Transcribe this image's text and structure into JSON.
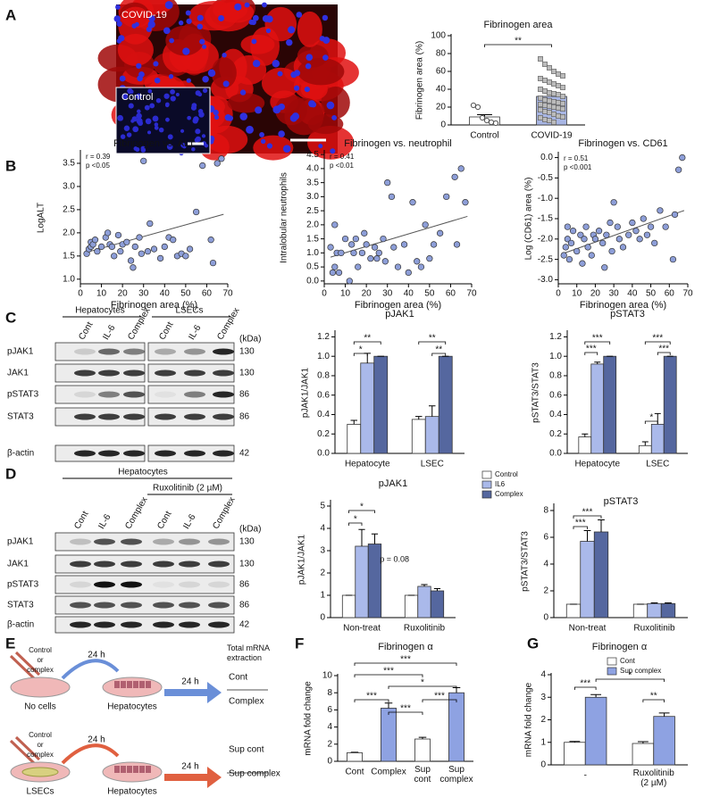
{
  "panel_labels": [
    "A",
    "B",
    "C",
    "D",
    "E",
    "F",
    "G"
  ],
  "image": {
    "labels": [
      "COVID-19",
      "Control"
    ]
  },
  "blots": [
    {
      "cell_groups": [
        "Hepatocytes",
        "LSECs"
      ],
      "lanes": [
        "Cont",
        "IL-6",
        "Complex",
        "Cont",
        "IL-6",
        "Complex"
      ],
      "rows": [
        "pJAK1",
        "JAK1",
        "pSTAT3",
        "STAT3",
        "β-actin"
      ],
      "kda_header": "(kDa)",
      "kda": [
        130,
        130,
        86,
        86,
        42
      ]
    },
    {
      "cell_groups": [
        "Hepatocytes"
      ],
      "treatment": "Ruxolitinib (2 µM)",
      "lanes": [
        "Cont",
        "IL-6",
        "Complex",
        "Cont",
        "IL-6",
        "Complex"
      ],
      "rows": [
        "pJAK1",
        "JAK1",
        "pSTAT3",
        "STAT3",
        "β-actin"
      ],
      "kda_header": "(kDa)",
      "kda": [
        130,
        130,
        86,
        86,
        42
      ]
    }
  ],
  "diagram": {
    "header": "Total mRNA\nextraction",
    "rows": [
      {
        "input": "Control\nor\ncomplex",
        "time1": "24 h",
        "source": "No cells",
        "target": "Hepatocytes",
        "time2": "24 h",
        "outputs": [
          "Cont",
          "Complex"
        ]
      },
      {
        "input": "Control\nor\ncomplex",
        "time1": "24 h",
        "source": "LSECs",
        "target": "Hepatocytes",
        "time2": "24 h",
        "outputs": [
          "Sup cont",
          "Sup complex"
        ]
      }
    ]
  },
  "chart_data": [
    {
      "type": "bar",
      "title": "Fibrinogen area",
      "y_label": "Fibrinogen area (%)",
      "categories": [
        "Control",
        "COVID-19"
      ],
      "values": [
        9,
        32
      ],
      "errors": [
        2.5,
        3.5
      ],
      "colors": [
        "#ffffff",
        "#a8b6e4"
      ],
      "points": [
        [
          22,
          20,
          8,
          5,
          3,
          2
        ],
        [
          74,
          68,
          64,
          60,
          57,
          55,
          52,
          50,
          48,
          46,
          44,
          42,
          40,
          38,
          36,
          35,
          34,
          32,
          30,
          28,
          27,
          26,
          25,
          24,
          23,
          22,
          21,
          20,
          19,
          18,
          17,
          15,
          14,
          12,
          10,
          9,
          8,
          6,
          5,
          3
        ]
      ],
      "ylim": [
        0,
        100
      ],
      "yticks": [
        0,
        20,
        40,
        60,
        80,
        100
      ],
      "significance": [
        "**"
      ]
    },
    {
      "type": "scatter",
      "title": "Fibrinogen vs. ALT",
      "x_label": "Fibrinogen area (%)",
      "y_label": "LogALT",
      "annotations": [
        "r = 0.39",
        "p <0.05"
      ],
      "x": [
        3,
        4,
        5,
        5,
        6,
        7,
        8,
        10,
        12,
        13,
        14,
        15,
        16,
        18,
        19,
        20,
        22,
        24,
        25,
        26,
        28,
        29,
        30,
        32,
        33,
        35,
        38,
        40,
        42,
        44,
        46,
        48,
        50,
        52,
        55,
        58,
        62,
        63,
        65,
        67
      ],
      "y": [
        1.55,
        1.65,
        1.7,
        1.8,
        1.75,
        1.85,
        1.6,
        1.7,
        1.9,
        2.0,
        1.75,
        1.7,
        1.5,
        1.95,
        1.6,
        1.75,
        1.8,
        1.4,
        1.25,
        1.7,
        1.9,
        1.55,
        3.55,
        1.6,
        2.2,
        1.65,
        1.45,
        1.7,
        1.9,
        1.85,
        1.5,
        1.55,
        1.5,
        1.65,
        2.45,
        3.45,
        1.85,
        1.35,
        3.5,
        3.6
      ],
      "trendline": {
        "x": [
          3,
          68
        ],
        "y": [
          1.58,
          2.4
        ]
      },
      "color": "#8d9ed8",
      "xlim": [
        0,
        70
      ],
      "xticks": [
        0,
        10,
        20,
        30,
        40,
        50,
        60,
        70
      ],
      "ylim": [
        0.9,
        3.75
      ],
      "yticks": [
        {
          "value": 1,
          "label": "1.0"
        },
        1.5,
        {
          "value": 2,
          "label": "2.0"
        },
        2.5,
        {
          "value": 3,
          "label": "3.0"
        },
        3.5
      ]
    },
    {
      "type": "scatter",
      "title": "Fibrinogen vs. neutrophil",
      "x_label": "Fibrinogen area (%)",
      "y_label": "Intralobular neutrophils",
      "annotations": [
        "r = 0.41",
        "p <0.01"
      ],
      "x": [
        3,
        4,
        5,
        5,
        6,
        7,
        8,
        10,
        12,
        13,
        14,
        15,
        16,
        18,
        19,
        20,
        22,
        24,
        25,
        26,
        28,
        29,
        30,
        32,
        33,
        35,
        38,
        40,
        42,
        44,
        46,
        48,
        50,
        52,
        55,
        58,
        62,
        63,
        65,
        67
      ],
      "y": [
        1.2,
        0.3,
        0.5,
        2.0,
        1.0,
        0.3,
        1.0,
        1.5,
        0.0,
        1.3,
        1.0,
        1.5,
        0.5,
        1.0,
        1.7,
        1.3,
        0.8,
        1.2,
        0.8,
        1.0,
        1.5,
        0.7,
        3.5,
        3.0,
        1.2,
        0.5,
        1.3,
        0.3,
        2.8,
        0.7,
        0.5,
        2.0,
        0.8,
        1.3,
        1.7,
        3.0,
        3.7,
        1.3,
        4.0,
        2.8
      ],
      "trendline": {
        "x": [
          3,
          68
        ],
        "y": [
          0.85,
          2.3
        ]
      },
      "color": "#8d9ed8",
      "xlim": [
        0,
        70
      ],
      "xticks": [
        0,
        10,
        20,
        30,
        40,
        50,
        60,
        70
      ],
      "ylim": [
        -0.1,
        4.6
      ],
      "yticks": [
        {
          "value": 0,
          "label": "0.0"
        },
        0.5,
        {
          "value": 1,
          "label": "1.0"
        },
        1.5,
        {
          "value": 2,
          "label": "2.0"
        },
        2.5,
        {
          "value": 3,
          "label": "3.0"
        },
        3.5,
        {
          "value": 4,
          "label": "4.0"
        },
        4.5
      ]
    },
    {
      "type": "scatter",
      "title": "Fibrinogen vs. CD61",
      "x_label": "Fibrinogen area (%)",
      "y_label": "Log (CD61) area (%)",
      "annotations": [
        "r = 0.51",
        "p <0.001"
      ],
      "x": [
        3,
        4,
        5,
        5,
        6,
        7,
        8,
        10,
        12,
        13,
        14,
        15,
        16,
        18,
        19,
        20,
        22,
        24,
        25,
        26,
        28,
        29,
        30,
        32,
        33,
        35,
        38,
        40,
        42,
        44,
        46,
        48,
        50,
        52,
        55,
        58,
        62,
        63,
        65,
        67
      ],
      "y": [
        -2.4,
        -2.2,
        -2.0,
        -1.7,
        -2.5,
        -2.1,
        -1.8,
        -2.3,
        -1.9,
        -2.6,
        -2.0,
        -1.7,
        -2.2,
        -2.4,
        -1.9,
        -2.0,
        -1.8,
        -2.1,
        -2.7,
        -1.9,
        -1.6,
        -2.3,
        -1.1,
        -1.7,
        -2.0,
        -2.2,
        -1.9,
        -1.6,
        -1.8,
        -2.0,
        -1.5,
        -1.9,
        -1.7,
        -2.1,
        -1.3,
        -1.7,
        -2.5,
        -1.4,
        -0.3,
        0.0
      ],
      "trendline": {
        "x": [
          3,
          68
        ],
        "y": [
          -2.35,
          -1.3
        ]
      },
      "color": "#8d9ed8",
      "xlim": [
        0,
        70
      ],
      "xticks": [
        0,
        10,
        20,
        30,
        40,
        50,
        60,
        70
      ],
      "ylim": [
        -3.1,
        0.1
      ],
      "yticks": [
        {
          "value": -3,
          "label": "-3.0"
        },
        -2.5,
        {
          "value": -2,
          "label": "-2.0"
        },
        -1.5,
        {
          "value": -1,
          "label": "-1.0"
        },
        -0.5,
        {
          "value": 0,
          "label": "0.0"
        }
      ]
    },
    {
      "type": "bar",
      "title": "pJAK1",
      "y_label": "pJAK1/JAK1",
      "categories": [
        "Hepatocyte",
        "LSEC"
      ],
      "series": [
        {
          "color": "#ffffff",
          "values": [
            0.3,
            0.35
          ],
          "errors": [
            0.04,
            0.03
          ]
        },
        {
          "color": "#aab9ea",
          "values": [
            0.93,
            0.38
          ],
          "errors": [
            0.1,
            0.11
          ]
        },
        {
          "color": "#55679f",
          "values": [
            1,
            1
          ],
          "errors": [
            0,
            0
          ]
        }
      ],
      "ylim": [
        0,
        1.25
      ],
      "yticks": [
        {
          "value": 0,
          "label": "0.0"
        },
        0.2,
        0.4,
        0.6,
        0.8,
        {
          "value": 1,
          "label": "1.0"
        },
        1.2
      ],
      "significance": [
        "**",
        "*",
        "**",
        "**"
      ]
    },
    {
      "type": "bar",
      "title": "pSTAT3",
      "y_label": "pSTAT3/STAT3",
      "categories": [
        "Hepatocyte",
        "LSEC"
      ],
      "series": [
        {
          "color": "#ffffff",
          "values": [
            0.17,
            0.08
          ],
          "errors": [
            0.03,
            0.04
          ]
        },
        {
          "color": "#aab9ea",
          "values": [
            0.92,
            0.3
          ],
          "errors": [
            0.02,
            0.11
          ]
        },
        {
          "color": "#55679f",
          "values": [
            1,
            1
          ],
          "errors": [
            0,
            0
          ]
        }
      ],
      "ylim": [
        0,
        1.25
      ],
      "yticks": [
        {
          "value": 0,
          "label": "0.0"
        },
        0.2,
        0.4,
        0.6,
        0.8,
        {
          "value": 1,
          "label": "1.0"
        },
        1.2
      ],
      "significance": [
        "***",
        "***",
        "***",
        "***",
        "*"
      ]
    },
    {
      "type": "bar",
      "title": "pJAK1",
      "y_label": "pJAK1/JAK1",
      "categories": [
        "Non-treat",
        "Ruxolitinib"
      ],
      "annotations": [
        "p = 0.08"
      ],
      "series": [
        {
          "name": "Control",
          "color": "#ffffff",
          "values": [
            1,
            1
          ],
          "errors": [
            0,
            0
          ]
        },
        {
          "name": "IL6",
          "color": "#aab9ea",
          "values": [
            3.2,
            1.4
          ],
          "errors": [
            0.75,
            0.08
          ]
        },
        {
          "name": "Complex",
          "color": "#55679f",
          "values": [
            3.3,
            1.2
          ],
          "errors": [
            0.45,
            0.1
          ]
        }
      ],
      "ylim": [
        0,
        5.2
      ],
      "yticks": [
        0,
        1,
        2,
        3,
        4,
        5
      ],
      "significance": [
        "*",
        "*"
      ]
    },
    {
      "type": "bar",
      "title": "pSTAT3",
      "y_label": "pSTAT3/STAT3",
      "categories": [
        "Non-treat",
        "Ruxolitinib"
      ],
      "series": [
        {
          "color": "#ffffff",
          "values": [
            1,
            1
          ],
          "errors": [
            0,
            0
          ]
        },
        {
          "color": "#aab9ea",
          "values": [
            5.7,
            1.05
          ],
          "errors": [
            0.8,
            0.05
          ]
        },
        {
          "color": "#55679f",
          "values": [
            6.4,
            1.05
          ],
          "errors": [
            0.9,
            0.05
          ]
        }
      ],
      "ylim": [
        0,
        8.4
      ],
      "yticks": [
        0,
        2,
        4,
        6,
        8
      ],
      "significance": [
        "***",
        "***"
      ]
    },
    {
      "type": "bar",
      "title": "Fibrinogen α",
      "y_label": "mRNA fold change",
      "categories": [
        "Cont",
        "Complex",
        "Sup\ncont",
        "Sup\ncomplex"
      ],
      "values": [
        1.0,
        6.2,
        2.6,
        8.0
      ],
      "errors": [
        0.05,
        0.6,
        0.2,
        0.6
      ],
      "colors": [
        "#ffffff",
        "#8ea2e2",
        "#ffffff",
        "#8ea2e2"
      ],
      "ylim": [
        0,
        10
      ],
      "yticks": [
        0,
        2,
        4,
        6,
        8,
        10
      ],
      "significance": [
        "***",
        "***",
        "*",
        "***",
        "***",
        "***"
      ]
    },
    {
      "type": "bar",
      "title": "Fibrinogen α",
      "y_label": "mRNA fold change",
      "categories": [
        "-",
        "Ruxolitinib\n(2 µM)"
      ],
      "series": [
        {
          "name": "Cont",
          "color": "#ffffff",
          "values": [
            1.0,
            0.95
          ],
          "errors": [
            0.04,
            0.08
          ]
        },
        {
          "name": "Sup complex",
          "color": "#8ea2e2",
          "values": [
            3.0,
            2.15
          ],
          "errors": [
            0.12,
            0.15
          ]
        }
      ],
      "ylim": [
        0,
        4
      ],
      "yticks": [
        0,
        1,
        2,
        3,
        4
      ],
      "significance": [
        "***",
        "*",
        "**"
      ]
    }
  ]
}
